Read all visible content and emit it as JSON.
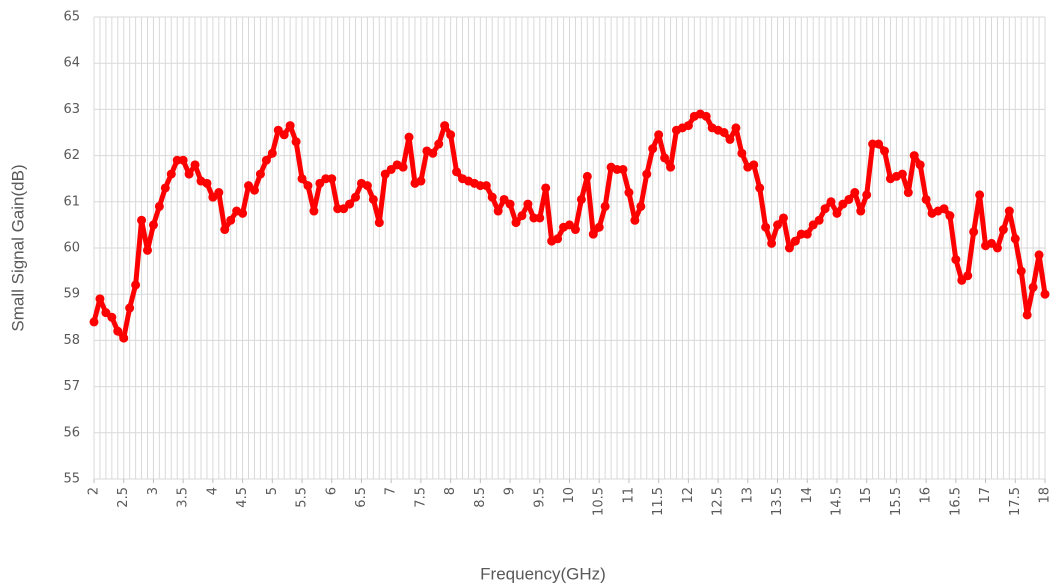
{
  "chart_data": {
    "type": "line",
    "x_label": "Frequency(GHz)",
    "y_label": "Small Signal Gain(dB)",
    "x": [
      2,
      2.1,
      2.2,
      2.3,
      2.4,
      2.5,
      2.6,
      2.7,
      2.8,
      2.9,
      3,
      3.1,
      3.2,
      3.3,
      3.4,
      3.5,
      3.6,
      3.7,
      3.8,
      3.9,
      4,
      4.1,
      4.2,
      4.3,
      4.4,
      4.5,
      4.6,
      4.7,
      4.8,
      4.9,
      5,
      5.1,
      5.2,
      5.3,
      5.4,
      5.5,
      5.6,
      5.7,
      5.8,
      5.9,
      6,
      6.1,
      6.2,
      6.3,
      6.4,
      6.5,
      6.6,
      6.7,
      6.8,
      6.9,
      7,
      7.1,
      7.2,
      7.3,
      7.4,
      7.5,
      7.6,
      7.7,
      7.8,
      7.9,
      8,
      8.1,
      8.2,
      8.3,
      8.4,
      8.5,
      8.6,
      8.7,
      8.8,
      8.9,
      9,
      9.1,
      9.2,
      9.3,
      9.4,
      9.5,
      9.6,
      9.7,
      9.8,
      9.9,
      10,
      10.1,
      10.2,
      10.3,
      10.4,
      10.5,
      10.6,
      10.7,
      10.8,
      10.9,
      11,
      11.1,
      11.2,
      11.3,
      11.4,
      11.5,
      11.6,
      11.7,
      11.8,
      11.9,
      12,
      12.1,
      12.2,
      12.3,
      12.4,
      12.5,
      12.6,
      12.7,
      12.8,
      12.9,
      13,
      13.1,
      13.2,
      13.3,
      13.4,
      13.5,
      13.6,
      13.7,
      13.8,
      13.9,
      14,
      14.1,
      14.2,
      14.3,
      14.4,
      14.5,
      14.6,
      14.7,
      14.8,
      14.9,
      15,
      15.1,
      15.2,
      15.3,
      15.4,
      15.5,
      15.6,
      15.7,
      15.8,
      15.9,
      16,
      16.1,
      16.2,
      16.3,
      16.4,
      16.5,
      16.6,
      16.7,
      16.8,
      16.9,
      17,
      17.1,
      17.2,
      17.3,
      17.4,
      17.5,
      17.6,
      17.7,
      17.8,
      17.9,
      18
    ],
    "series": [
      {
        "name": "Small Signal Gain",
        "color": "#ff0000",
        "values": [
          58.4,
          58.9,
          58.6,
          58.5,
          58.2,
          58.05,
          58.7,
          59.2,
          60.6,
          59.95,
          60.5,
          60.9,
          61.3,
          61.6,
          61.9,
          61.9,
          61.6,
          61.8,
          61.45,
          61.4,
          61.1,
          61.2,
          60.4,
          60.6,
          60.8,
          60.75,
          61.35,
          61.25,
          61.6,
          61.9,
          62.05,
          62.55,
          62.45,
          62.65,
          62.3,
          61.5,
          61.35,
          60.8,
          61.4,
          61.5,
          61.5,
          60.85,
          60.85,
          60.95,
          61.1,
          61.4,
          61.35,
          61.05,
          60.55,
          61.6,
          61.7,
          61.8,
          61.75,
          62.4,
          61.4,
          61.45,
          62.1,
          62.05,
          62.25,
          62.65,
          62.45,
          61.65,
          61.5,
          61.45,
          61.4,
          61.35,
          61.35,
          61.1,
          60.8,
          61.05,
          60.95,
          60.55,
          60.7,
          60.95,
          60.65,
          60.65,
          61.3,
          60.15,
          60.2,
          60.45,
          60.5,
          60.4,
          61.05,
          61.55,
          60.3,
          60.45,
          60.9,
          61.75,
          61.7,
          61.7,
          61.2,
          60.6,
          60.9,
          61.6,
          62.15,
          62.45,
          61.95,
          61.75,
          62.55,
          62.6,
          62.65,
          62.85,
          62.9,
          62.85,
          62.6,
          62.55,
          62.5,
          62.35,
          62.6,
          62.05,
          61.75,
          61.8,
          61.3,
          60.45,
          60.1,
          60.5,
          60.65,
          60.0,
          60.15,
          60.3,
          60.3,
          60.5,
          60.6,
          60.85,
          61.0,
          60.75,
          60.95,
          61.05,
          61.2,
          60.8,
          61.15,
          62.25,
          62.25,
          62.1,
          61.5,
          61.55,
          61.6,
          61.2,
          62.0,
          61.8,
          61.05,
          60.75,
          60.8,
          60.85,
          60.7,
          59.75,
          59.3,
          59.4,
          60.35,
          61.15,
          60.05,
          60.1,
          60.0,
          60.4,
          60.8,
          60.2,
          59.5,
          58.55,
          59.15,
          59.85,
          59.0
        ]
      }
    ],
    "xlim": [
      2,
      18
    ],
    "xticks": [
      2,
      2.5,
      3,
      3.5,
      4,
      4.5,
      5,
      5.5,
      6,
      6.5,
      7,
      7.5,
      8,
      8.5,
      9,
      9.5,
      10,
      10.5,
      11,
      11.5,
      12,
      12.5,
      13,
      13.5,
      14,
      14.5,
      15,
      15.5,
      16,
      16.5,
      17,
      17.5,
      18
    ],
    "ylim": [
      55,
      65
    ],
    "yticks": [
      55,
      56,
      57,
      58,
      59,
      60,
      61,
      62,
      63,
      64,
      65
    ],
    "grid": true
  }
}
